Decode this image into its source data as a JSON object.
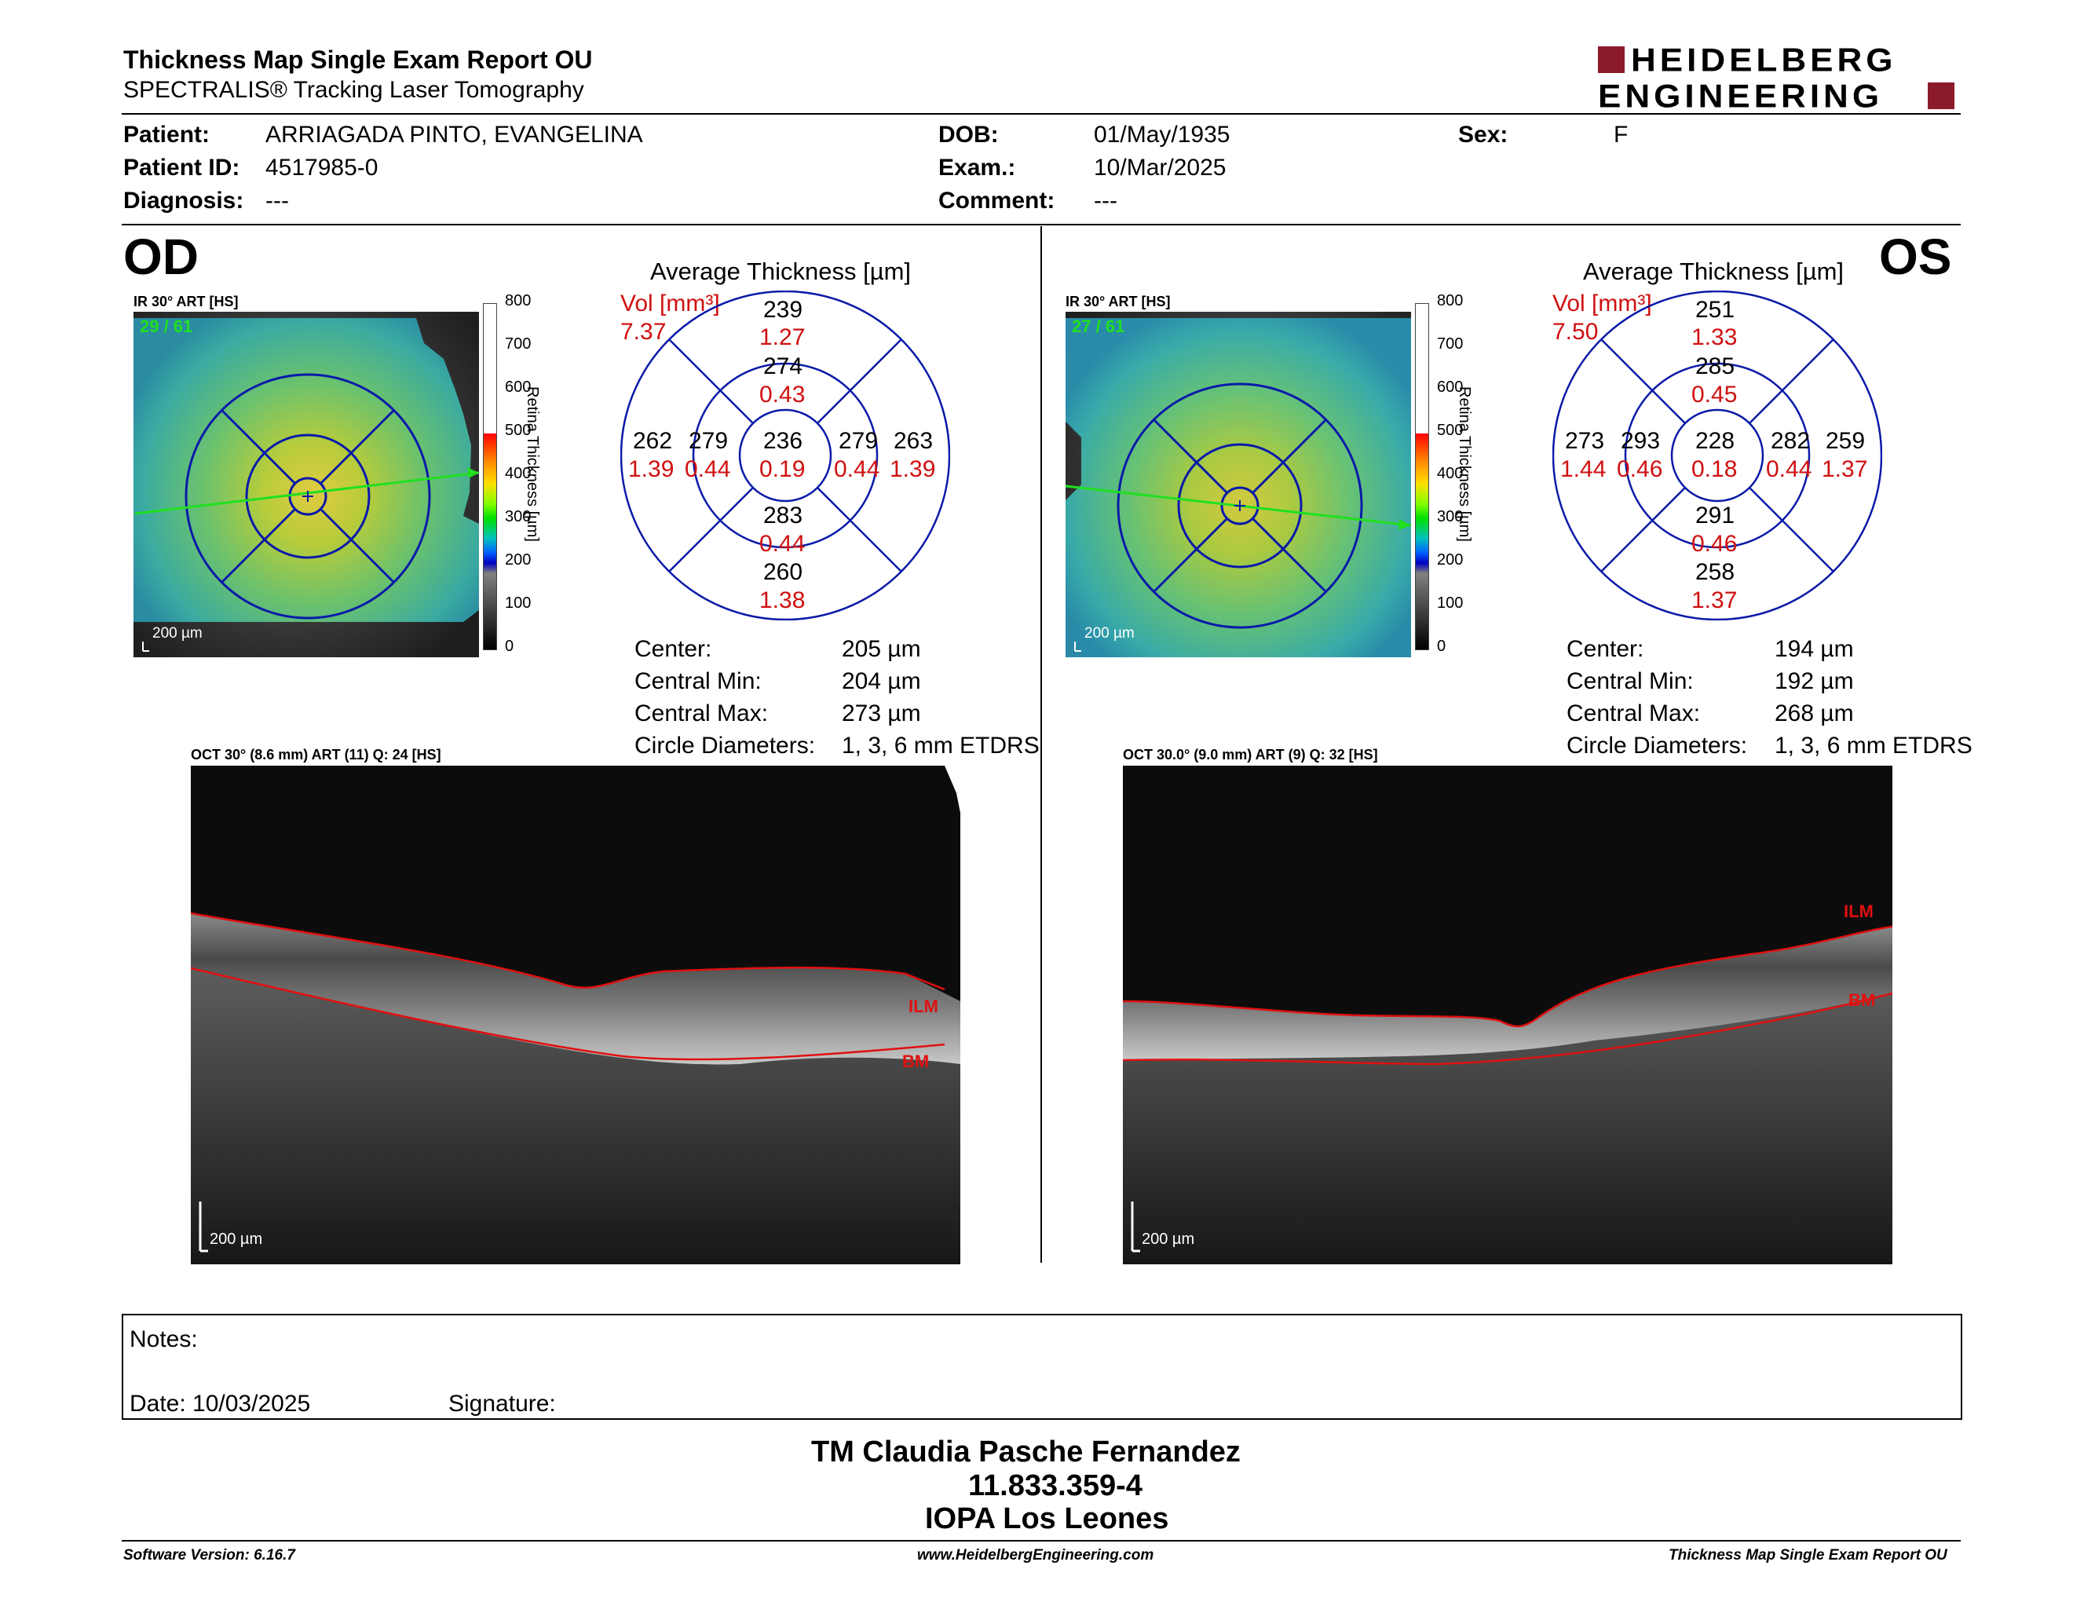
{
  "report": {
    "title": "Thickness Map Single Exam Report OU",
    "subtitle": "SPECTRALIS® Tracking Laser Tomography",
    "logo_line1": "HEIDELBERG",
    "logo_line2": "ENGINEERING",
    "brand_color": "#8b1a2b"
  },
  "patient": {
    "patient_label": "Patient:",
    "patient_value": "ARRIAGADA PINTO, EVANGELINA",
    "id_label": "Patient ID:",
    "id_value": "4517985-0",
    "diagnosis_label": "Diagnosis:",
    "diagnosis_value": "---",
    "dob_label": "DOB:",
    "dob_value": "01/May/1935",
    "exam_label": "Exam.:",
    "exam_value": "10/Mar/2025",
    "comment_label": "Comment:",
    "comment_value": "---",
    "sex_label": "Sex:",
    "sex_value": "F"
  },
  "scale": {
    "ticks": [
      "800",
      "700",
      "600",
      "500",
      "400",
      "300",
      "200",
      "100",
      "0"
    ],
    "axis_label": "Retina  Thickness [µm]"
  },
  "od": {
    "eye": "OD",
    "ir_label": "IR 30° ART [HS]",
    "frames": "29 / 61",
    "scalebar": "200 µm",
    "avg_title": "Average Thickness [µm]",
    "vol_label": "Vol [mm³]",
    "vol_value": "7.37",
    "sectors": {
      "outer_top": {
        "t": "239",
        "v": "1.27"
      },
      "inner_top": {
        "t": "274",
        "v": "0.43"
      },
      "outer_left": {
        "t": "262",
        "v": "1.39"
      },
      "inner_left": {
        "t": "279",
        "v": "0.44"
      },
      "center": {
        "t": "236",
        "v": "0.19"
      },
      "inner_right": {
        "t": "279",
        "v": "0.44"
      },
      "outer_right": {
        "t": "263",
        "v": "1.39"
      },
      "inner_bottom": {
        "t": "283",
        "v": "0.44"
      },
      "outer_bottom": {
        "t": "260",
        "v": "1.38"
      }
    },
    "stats": {
      "center_label": "Center:",
      "center_value": "205 µm",
      "min_label": "Central Min:",
      "min_value": "204 µm",
      "max_label": "Central Max:",
      "max_value": "273 µm",
      "circle_label": "Circle Diameters:",
      "circle_value": "1, 3, 6 mm ETDRS"
    },
    "oct_label": "OCT 30° (8.6 mm) ART (11) Q: 24 [HS]",
    "ilm": "ILM",
    "bm": "BM",
    "oct_scalebar": "200 µm"
  },
  "os": {
    "eye": "OS",
    "ir_label": "IR 30° ART [HS]",
    "frames": "27 / 61",
    "scalebar": "200 µm",
    "avg_title": "Average Thickness [µm]",
    "vol_label": "Vol [mm³]",
    "vol_value": "7.50",
    "sectors": {
      "outer_top": {
        "t": "251",
        "v": "1.33"
      },
      "inner_top": {
        "t": "285",
        "v": "0.45"
      },
      "outer_left": {
        "t": "273",
        "v": "1.44"
      },
      "inner_left": {
        "t": "293",
        "v": "0.46"
      },
      "center": {
        "t": "228",
        "v": "0.18"
      },
      "inner_right": {
        "t": "282",
        "v": "0.44"
      },
      "outer_right": {
        "t": "259",
        "v": "1.37"
      },
      "inner_bottom": {
        "t": "291",
        "v": "0.46"
      },
      "outer_bottom": {
        "t": "258",
        "v": "1.37"
      }
    },
    "stats": {
      "center_label": "Center:",
      "center_value": "194 µm",
      "min_label": "Central Min:",
      "min_value": "192 µm",
      "max_label": "Central Max:",
      "max_value": "268 µm",
      "circle_label": "Circle Diameters:",
      "circle_value": "1, 3, 6 mm ETDRS"
    },
    "oct_label": "OCT 30.0° (9.0 mm) ART (9) Q: 32 [HS]",
    "ilm": "ILM",
    "bm": "BM",
    "oct_scalebar": "200 µm"
  },
  "notes": {
    "notes_label": "Notes:",
    "date_label": "Date: 10/03/2025",
    "signature_label": "Signature:"
  },
  "signer": {
    "name": "TM Claudia Pasche Fernandez",
    "id": "11.833.359-4",
    "org": "IOPA Los Leones"
  },
  "footer": {
    "software": "Software Version: 6.16.7",
    "website": "www.HeidelbergEngineering.com",
    "report": "Thickness Map Single Exam Report OU"
  }
}
